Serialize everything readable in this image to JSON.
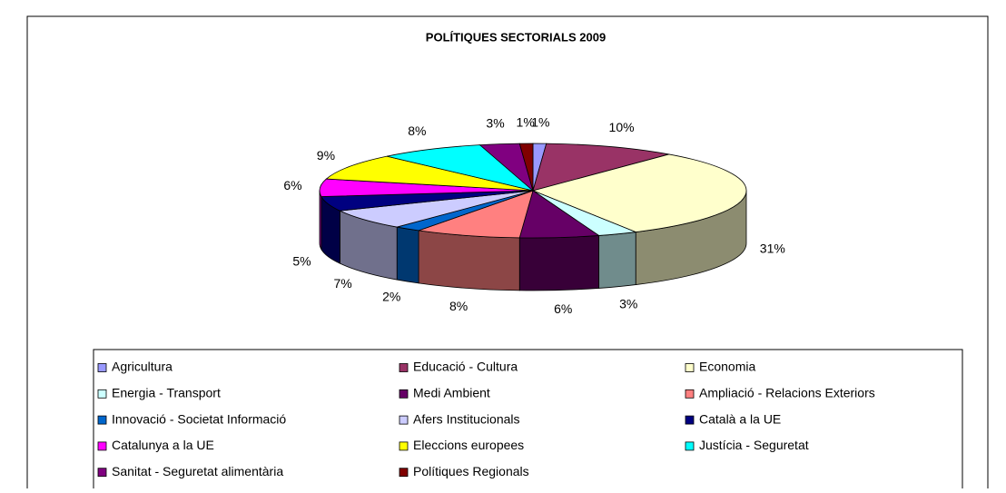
{
  "chart_data": {
    "type": "pie3d",
    "title": "POLÍTIQUES SECTORIALS 2009",
    "categories": [
      "Agricultura",
      "Educació - Cultura",
      "Economia",
      "Energia - Transport",
      "Medi Ambient",
      "Ampliació - Relacions Exteriors",
      "Innovació - Societat Informació",
      "Afers Institucionals",
      "Català a la UE",
      "Catalunya a la UE",
      "Eleccions europees",
      "Justícia - Seguretat",
      "Sanitat - Seguretat alimentària",
      "Polítiques Regionals"
    ],
    "values": [
      1,
      10,
      31,
      3,
      6,
      8,
      2,
      7,
      5,
      6,
      9,
      8,
      3,
      1
    ],
    "value_labels": [
      "1%",
      "10%",
      "31%",
      "3%",
      "6%",
      "8%",
      "2%",
      "7%",
      "5%",
      "6%",
      "9%",
      "8%",
      "3%",
      "1%"
    ],
    "colors": [
      "#9999ff",
      "#993366",
      "#ffffcc",
      "#ccffff",
      "#660066",
      "#ff8080",
      "#0066cc",
      "#ccccff",
      "#000080",
      "#ff00ff",
      "#ffff00",
      "#00ffff",
      "#800080",
      "#800000"
    ]
  }
}
